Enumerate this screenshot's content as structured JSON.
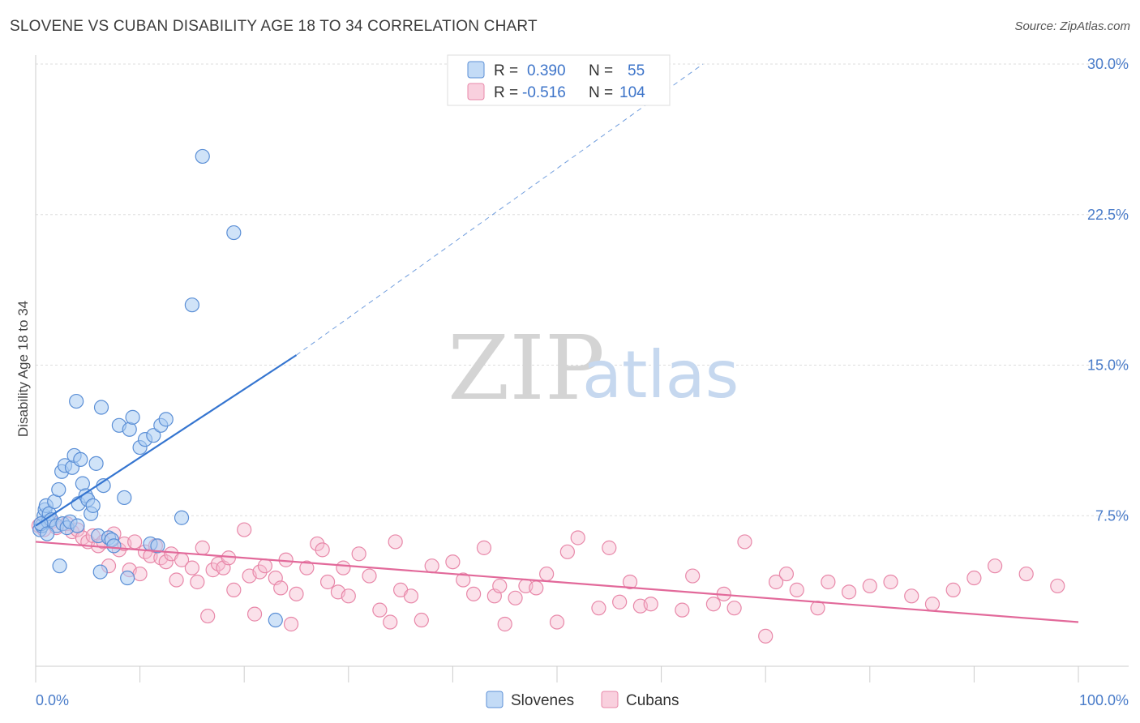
{
  "title": "SLOVENE VS CUBAN DISABILITY AGE 18 TO 34 CORRELATION CHART",
  "source": "Source: ZipAtlas.com",
  "watermark": {
    "zip": "ZIP",
    "atlas": "atlas"
  },
  "colors": {
    "slovenes_fill": "#aaccf2",
    "slovenes_stroke": "#5b8fd6",
    "slovenes_line": "#3575d0",
    "cubans_fill": "#f7bcd0",
    "cubans_stroke": "#e888a9",
    "cubans_line": "#e2699a",
    "grid": "#dddddd",
    "tick_label": "#4a7cc9"
  },
  "legend": {
    "rows": [
      {
        "r_label": "R =",
        "r_value": "0.390",
        "n_label": "N =",
        "n_value": "55"
      },
      {
        "r_label": "R =",
        "r_value": "-0.516",
        "n_label": "N =",
        "n_value": "104"
      }
    ]
  },
  "bottom_legend": [
    "Slovenes",
    "Cubans"
  ],
  "chart_data": {
    "type": "scatter",
    "title": "SLOVENE VS CUBAN DISABILITY AGE 18 TO 34 CORRELATION CHART",
    "xlabel": "",
    "ylabel": "Disability Age 18 to 34",
    "xlim": [
      0,
      100
    ],
    "ylim": [
      0,
      30
    ],
    "y_ticks": [
      7.5,
      15.0,
      22.5,
      30.0
    ],
    "y_tick_labels": [
      "7.5%",
      "15.0%",
      "22.5%",
      "30.0%"
    ],
    "x_tick_labels": [
      "0.0%",
      "100.0%"
    ],
    "grid": true,
    "legend_position": "top-center",
    "series": [
      {
        "name": "Slovenes",
        "x": [
          0.4,
          0.6,
          0.8,
          0.9,
          1.0,
          1.2,
          1.3,
          1.5,
          1.8,
          2.0,
          2.2,
          2.5,
          2.6,
          2.8,
          3.0,
          3.3,
          3.5,
          3.7,
          4.0,
          4.1,
          4.3,
          4.5,
          4.8,
          5.0,
          5.3,
          5.5,
          5.8,
          6.0,
          6.3,
          6.5,
          7.0,
          7.3,
          7.5,
          8.0,
          8.5,
          9.0,
          9.3,
          10.0,
          10.5,
          11.0,
          11.3,
          11.7,
          12.0,
          12.5,
          14.0,
          15.0,
          16.0,
          19.0,
          23.0,
          0.5,
          1.1,
          2.3,
          3.9,
          6.2,
          8.8
        ],
        "y": [
          6.8,
          7.0,
          7.5,
          7.8,
          8.0,
          7.2,
          7.6,
          7.3,
          8.2,
          7.0,
          8.8,
          9.7,
          7.1,
          10.0,
          6.9,
          7.2,
          9.9,
          10.5,
          7.0,
          8.1,
          10.3,
          9.1,
          8.5,
          8.3,
          7.6,
          8.0,
          10.1,
          6.5,
          12.9,
          9.0,
          6.4,
          6.3,
          6.0,
          12.0,
          8.4,
          11.8,
          12.4,
          10.9,
          11.3,
          6.1,
          11.5,
          6.0,
          12.0,
          12.3,
          7.4,
          18.0,
          25.4,
          21.6,
          2.3,
          7.1,
          6.6,
          5.0,
          13.2,
          4.7,
          4.4
        ],
        "trend": {
          "x0": 0,
          "y0": 7.0,
          "x1": 25,
          "y1": 15.5,
          "extend_to_x": 64,
          "extend_to_y": 30.0
        }
      },
      {
        "name": "Cubans",
        "x": [
          0.3,
          0.8,
          1.5,
          2.0,
          3.0,
          3.5,
          4.0,
          4.5,
          5.0,
          5.5,
          6.0,
          6.5,
          7.0,
          7.5,
          8.0,
          8.5,
          9.0,
          9.5,
          10.0,
          10.5,
          11.0,
          11.5,
          12.0,
          12.5,
          13.0,
          13.5,
          14.0,
          15.0,
          15.5,
          16.0,
          16.5,
          17.0,
          17.5,
          18.0,
          18.5,
          19.0,
          20.0,
          20.5,
          21.0,
          21.5,
          22.0,
          23.0,
          23.5,
          24.0,
          24.5,
          25.0,
          26.0,
          27.0,
          27.5,
          28.0,
          29.0,
          29.5,
          30.0,
          31.0,
          32.0,
          33.0,
          34.0,
          34.5,
          35.0,
          36.0,
          37.0,
          38.0,
          40.0,
          41.0,
          42.0,
          43.0,
          44.0,
          44.5,
          45.0,
          46.0,
          47.0,
          48.0,
          49.0,
          50.0,
          51.0,
          52.0,
          54.0,
          55.0,
          56.0,
          57.0,
          58.0,
          59.0,
          62.0,
          63.0,
          65.0,
          66.0,
          67.0,
          68.0,
          70.0,
          71.0,
          72.0,
          73.0,
          75.0,
          76.0,
          78.0,
          80.0,
          82.0,
          84.0,
          86.0,
          88.0,
          90.0,
          92.0,
          95.0,
          98.0
        ],
        "y": [
          7.0,
          6.8,
          7.2,
          6.9,
          7.1,
          6.7,
          6.8,
          6.4,
          6.2,
          6.5,
          6.0,
          6.2,
          5.0,
          6.6,
          5.8,
          6.1,
          4.8,
          6.2,
          4.6,
          5.7,
          5.5,
          6.0,
          5.4,
          5.2,
          5.6,
          4.3,
          5.3,
          4.9,
          4.2,
          5.9,
          2.5,
          4.8,
          5.1,
          4.9,
          5.4,
          3.8,
          6.8,
          4.5,
          2.6,
          4.7,
          5.0,
          4.4,
          3.9,
          5.3,
          2.1,
          3.6,
          4.9,
          6.1,
          5.8,
          4.2,
          3.7,
          4.9,
          3.5,
          5.6,
          4.5,
          2.8,
          2.2,
          6.2,
          3.8,
          3.5,
          2.3,
          5.0,
          5.2,
          4.3,
          3.6,
          5.9,
          3.5,
          4.0,
          2.1,
          3.4,
          4.0,
          3.9,
          4.6,
          2.2,
          5.7,
          6.4,
          2.9,
          5.9,
          3.2,
          4.2,
          3.0,
          3.1,
          2.8,
          4.5,
          3.1,
          3.6,
          2.9,
          6.2,
          1.5,
          4.2,
          4.6,
          3.8,
          2.9,
          4.2,
          3.7,
          4.0,
          4.2,
          3.5,
          3.1,
          3.8,
          4.4,
          5.0,
          4.6,
          4.0
        ],
        "trend": {
          "x0": 0,
          "y0": 6.2,
          "x1": 100,
          "y1": 2.2
        }
      }
    ]
  }
}
